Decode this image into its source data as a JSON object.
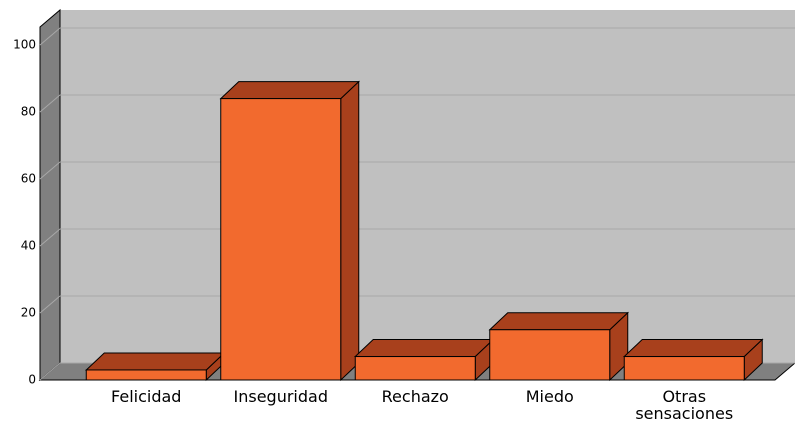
{
  "chart_data": {
    "type": "bar3d",
    "categories": [
      "Felicidad",
      "Inseguridad",
      "Rechazo",
      "Miedo",
      "Otras sensaciones"
    ],
    "values": [
      3,
      84,
      7,
      15,
      7
    ],
    "color": "#f26a2e",
    "shade_color": "#a8401c",
    "ylim": [
      0,
      100
    ],
    "yticks": [
      0,
      20,
      40,
      60,
      80,
      100
    ],
    "grid": true
  }
}
